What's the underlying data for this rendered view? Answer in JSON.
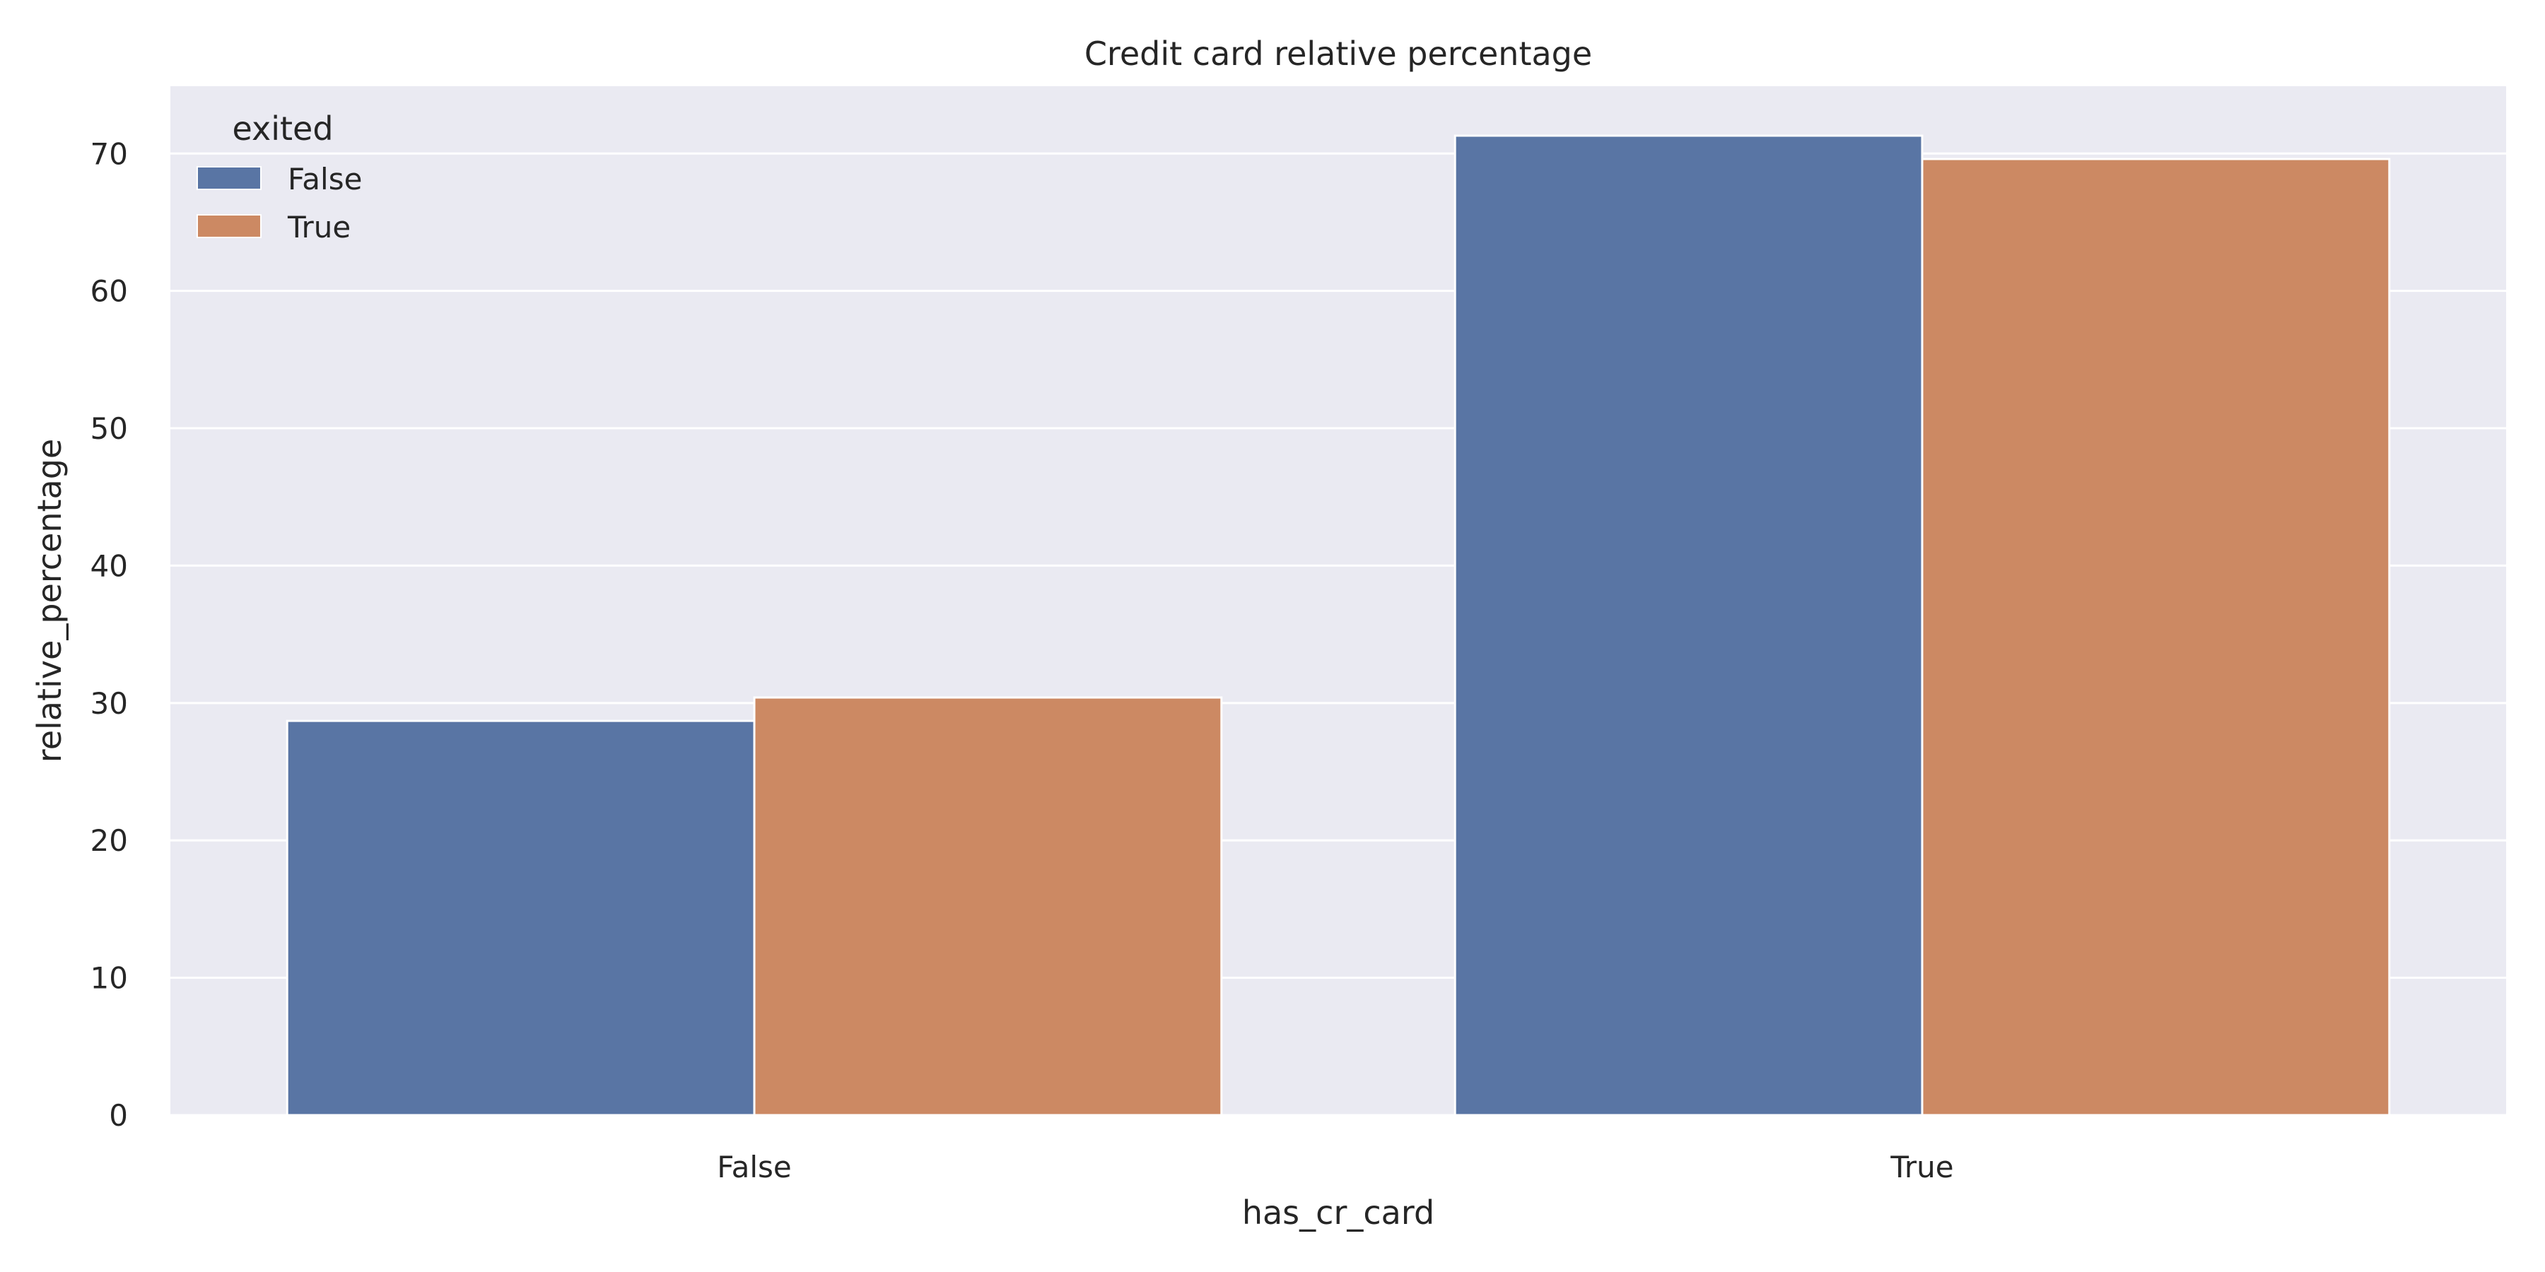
{
  "chart_data": {
    "type": "bar",
    "title": "Credit card relative percentage",
    "xlabel": "has_cr_card",
    "ylabel": "relative_percentage",
    "categories": [
      "False",
      "True"
    ],
    "series": [
      {
        "name": "False",
        "values": [
          28.7,
          71.3
        ]
      },
      {
        "name": "True",
        "values": [
          30.4,
          69.6
        ]
      }
    ],
    "ylim": [
      0,
      74.9
    ],
    "yticks": [
      0,
      10,
      20,
      30,
      40,
      50,
      60,
      70
    ],
    "grid": true,
    "legend": {
      "title": "exited",
      "placement": "top-left"
    },
    "colors": {
      "plot_background": "#eaeaf2",
      "grid": "#ffffff",
      "series": [
        "#5975a4",
        "#cc8963"
      ]
    }
  }
}
